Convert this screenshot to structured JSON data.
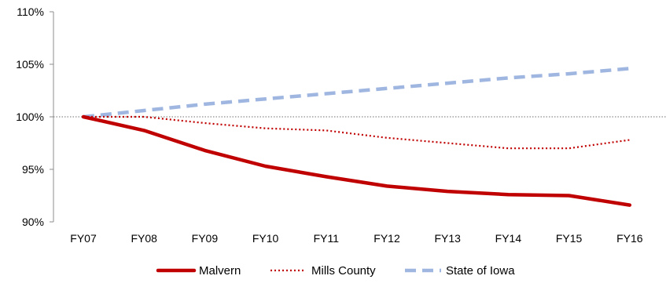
{
  "chart_data": {
    "type": "line",
    "title": "",
    "xlabel": "",
    "ylabel": "",
    "categories": [
      "FY07",
      "FY08",
      "FY09",
      "FY10",
      "FY11",
      "FY12",
      "FY13",
      "FY14",
      "FY15",
      "FY16"
    ],
    "ylim": [
      90,
      110
    ],
    "yticks": [
      90,
      95,
      100,
      105,
      110
    ],
    "ytick_labels": [
      "90%",
      "95%",
      "100%",
      "105%",
      "110%"
    ],
    "reference_line": 100,
    "grid": false,
    "legend_position": "bottom",
    "series": [
      {
        "name": "Malvern",
        "style": "solid",
        "color": "#C00000",
        "values": [
          100.0,
          98.7,
          96.8,
          95.3,
          94.3,
          93.4,
          92.9,
          92.6,
          92.5,
          91.6
        ]
      },
      {
        "name": "Mills County",
        "style": "dotted",
        "color": "#C00000",
        "values": [
          100.0,
          100.0,
          99.4,
          98.9,
          98.7,
          98.0,
          97.5,
          97.0,
          97.0,
          97.8
        ]
      },
      {
        "name": "State of Iowa",
        "style": "dashed",
        "color": "#9FB6E0",
        "values": [
          100.0,
          100.6,
          101.2,
          101.7,
          102.2,
          102.7,
          103.2,
          103.7,
          104.1,
          104.6
        ]
      }
    ]
  }
}
